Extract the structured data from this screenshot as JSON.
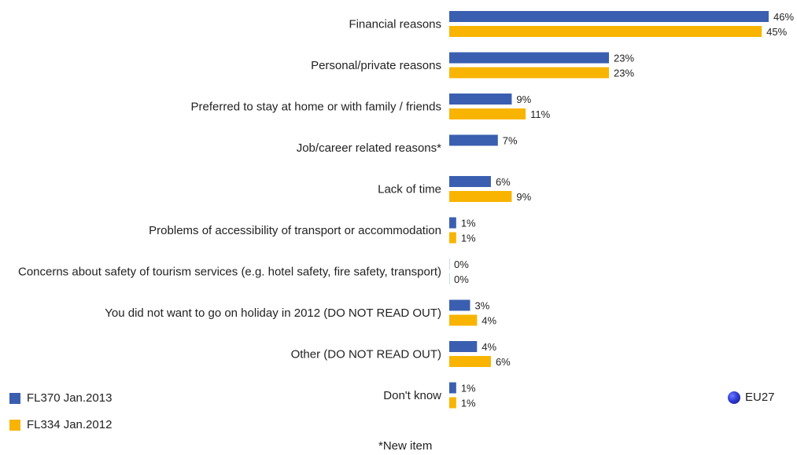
{
  "colors": {
    "series_2013": "#3a5fb0",
    "series_2012": "#f8b400"
  },
  "legend": {
    "items": [
      "FL370 Jan.2013",
      "FL334 Jan.2012"
    ]
  },
  "badge": {
    "label": "EU27",
    "icon": "eu-globe-icon"
  },
  "footnote": "*New item",
  "chart_data": {
    "type": "bar",
    "orientation": "horizontal",
    "categories": [
      "Financial reasons",
      "Personal/private reasons",
      "Preferred to stay at home or with family / friends",
      "Job/career related reasons*",
      "Lack of time",
      "Problems of accessibility of transport or accommodation",
      "Concerns about safety of tourism services (e.g. hotel safety, fire safety, transport)",
      "You did not want to go on holiday in 2012 (DO NOT READ OUT)",
      "Other (DO NOT READ OUT)",
      "Don't know"
    ],
    "series": [
      {
        "name": "FL370 Jan.2013",
        "values": [
          46,
          23,
          9,
          7,
          6,
          1,
          0,
          3,
          4,
          1
        ],
        "labels": [
          "46%",
          "23%",
          "9%",
          "7%",
          "6%",
          "1%",
          "0%",
          "3%",
          "4%",
          "1%"
        ]
      },
      {
        "name": "FL334 Jan.2012",
        "values": [
          45,
          23,
          11,
          null,
          9,
          1,
          0,
          4,
          6,
          1
        ],
        "labels": [
          "45%",
          "23%",
          "11%",
          null,
          "9%",
          "1%",
          "0%",
          "4%",
          "6%",
          "1%"
        ]
      }
    ],
    "xlim": [
      0,
      46
    ],
    "grid": false,
    "legend_position": "bottom-left"
  }
}
